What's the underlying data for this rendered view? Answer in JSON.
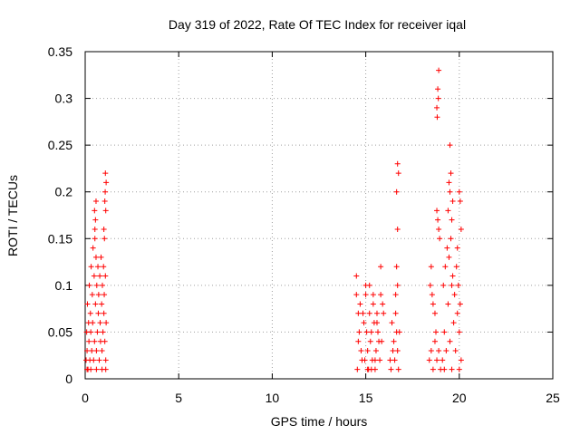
{
  "chart_data": {
    "type": "scatter",
    "title": "Day 319 of 2022, Rate Of TEC Index for receiver iqal",
    "xlabel": "GPS time / hours",
    "ylabel": "ROTI / TECUs",
    "xlim": [
      0,
      25
    ],
    "ylim": [
      0,
      0.35
    ],
    "x_ticks": [
      0,
      5,
      10,
      15,
      20,
      25
    ],
    "y_ticks": [
      0,
      0.05,
      0.1,
      0.15,
      0.2,
      0.25,
      0.3,
      0.35
    ],
    "x_tick_labels": [
      "0",
      "5",
      "10",
      "15",
      "20",
      "25"
    ],
    "y_tick_labels": [
      "0",
      "0.05",
      "0.1",
      "0.15",
      "0.2",
      "0.25",
      "0.3",
      "0.35"
    ],
    "grid": true,
    "legend": "none",
    "marker": "plus",
    "color": "#ff0000",
    "series": [
      {
        "points": [
          [
            0.05,
            0.02
          ],
          [
            0.08,
            0.05
          ],
          [
            0.1,
            0.03
          ],
          [
            0.12,
            0.08
          ],
          [
            0.15,
            0.01
          ],
          [
            0.18,
            0.06
          ],
          [
            0.2,
            0.04
          ],
          [
            0.22,
            0.1
          ],
          [
            0.25,
            0.02
          ],
          [
            0.28,
            0.07
          ],
          [
            0.3,
            0.05
          ],
          [
            0.32,
            0.12
          ],
          [
            0.35,
            0.03
          ],
          [
            0.38,
            0.09
          ],
          [
            0.4,
            0.06
          ],
          [
            0.42,
            0.14
          ],
          [
            0.45,
            0.02
          ],
          [
            0.48,
            0.11
          ],
          [
            0.5,
            0.04
          ],
          [
            0.52,
            0.15
          ],
          [
            0.55,
            0.08
          ],
          [
            0.58,
            0.13
          ],
          [
            0.6,
            0.03
          ],
          [
            0.62,
            0.1
          ],
          [
            0.65,
            0.05
          ],
          [
            0.68,
            0.12
          ],
          [
            0.7,
            0.07
          ],
          [
            0.72,
            0.09
          ],
          [
            0.75,
            0.02
          ],
          [
            0.78,
            0.11
          ],
          [
            0.8,
            0.06
          ],
          [
            0.82,
            0.04
          ],
          [
            0.85,
            0.13
          ],
          [
            0.88,
            0.08
          ],
          [
            0.9,
            0.03
          ],
          [
            0.92,
            0.1
          ],
          [
            0.95,
            0.05
          ],
          [
            0.98,
            0.12
          ],
          [
            1.0,
            0.07
          ],
          [
            1.02,
            0.09
          ],
          [
            1.05,
            0.04
          ],
          [
            1.08,
            0.11
          ],
          [
            1.1,
            0.02
          ],
          [
            1.12,
            0.06
          ],
          [
            0.5,
            0.18
          ],
          [
            0.55,
            0.17
          ],
          [
            0.58,
            0.19
          ],
          [
            0.52,
            0.16
          ],
          [
            1.05,
            0.19
          ],
          [
            1.08,
            0.22
          ],
          [
            1.1,
            0.18
          ],
          [
            1.07,
            0.2
          ],
          [
            1.12,
            0.21
          ],
          [
            1.0,
            0.16
          ],
          [
            1.03,
            0.15
          ],
          [
            0.1,
            0.01
          ],
          [
            0.3,
            0.01
          ],
          [
            0.6,
            0.01
          ],
          [
            0.9,
            0.01
          ],
          [
            1.1,
            0.01
          ],
          [
            14.5,
            0.11
          ],
          [
            14.6,
            0.04
          ],
          [
            14.7,
            0.08
          ],
          [
            14.8,
            0.02
          ],
          [
            14.9,
            0.06
          ],
          [
            15.0,
            0.1
          ],
          [
            15.1,
            0.03
          ],
          [
            15.2,
            0.07
          ],
          [
            15.3,
            0.05
          ],
          [
            15.4,
            0.09
          ],
          [
            15.5,
            0.02
          ],
          [
            15.6,
            0.06
          ],
          [
            15.7,
            0.04
          ],
          [
            15.8,
            0.12
          ],
          [
            15.9,
            0.08
          ],
          [
            14.55,
            0.01
          ],
          [
            14.65,
            0.05
          ],
          [
            14.75,
            0.03
          ],
          [
            14.85,
            0.07
          ],
          [
            14.95,
            0.02
          ],
          [
            15.05,
            0.05
          ],
          [
            15.15,
            0.01
          ],
          [
            15.25,
            0.04
          ],
          [
            15.35,
            0.02
          ],
          [
            15.45,
            0.06
          ],
          [
            15.55,
            0.03
          ],
          [
            15.65,
            0.05
          ],
          [
            15.75,
            0.02
          ],
          [
            15.85,
            0.04
          ],
          [
            15.95,
            0.07
          ],
          [
            15.0,
            0.09
          ],
          [
            15.2,
            0.1
          ],
          [
            15.4,
            0.08
          ],
          [
            15.6,
            0.07
          ],
          [
            15.8,
            0.09
          ],
          [
            14.5,
            0.09
          ],
          [
            14.6,
            0.07
          ],
          [
            15.5,
            0.01
          ],
          [
            15.3,
            0.01
          ],
          [
            15.1,
            0.01
          ],
          [
            16.3,
            0.02
          ],
          [
            16.4,
            0.06
          ],
          [
            16.5,
            0.04
          ],
          [
            16.6,
            0.07
          ],
          [
            16.7,
            0.03
          ],
          [
            16.8,
            0.05
          ],
          [
            16.35,
            0.01
          ],
          [
            16.45,
            0.03
          ],
          [
            16.55,
            0.02
          ],
          [
            16.65,
            0.05
          ],
          [
            16.75,
            0.01
          ],
          [
            16.6,
            0.09
          ],
          [
            16.65,
            0.12
          ],
          [
            16.7,
            0.1
          ],
          [
            16.7,
            0.16
          ],
          [
            16.65,
            0.2
          ],
          [
            16.7,
            0.23
          ],
          [
            16.75,
            0.22
          ],
          [
            18.4,
            0.02
          ],
          [
            18.5,
            0.03
          ],
          [
            18.6,
            0.01
          ],
          [
            18.7,
            0.04
          ],
          [
            18.8,
            0.02
          ],
          [
            18.9,
            0.03
          ],
          [
            19.0,
            0.01
          ],
          [
            18.45,
            0.1
          ],
          [
            18.5,
            0.12
          ],
          [
            18.55,
            0.09
          ],
          [
            18.6,
            0.08
          ],
          [
            18.7,
            0.07
          ],
          [
            18.75,
            0.05
          ],
          [
            18.8,
            0.29
          ],
          [
            18.85,
            0.31
          ],
          [
            18.9,
            0.33
          ],
          [
            18.82,
            0.28
          ],
          [
            18.88,
            0.3
          ],
          [
            18.8,
            0.18
          ],
          [
            18.85,
            0.17
          ],
          [
            18.9,
            0.16
          ],
          [
            18.95,
            0.15
          ],
          [
            19.1,
            0.02
          ],
          [
            19.2,
            0.05
          ],
          [
            19.3,
            0.03
          ],
          [
            19.4,
            0.08
          ],
          [
            19.5,
            0.04
          ],
          [
            19.6,
            0.1
          ],
          [
            19.7,
            0.06
          ],
          [
            19.8,
            0.03
          ],
          [
            19.9,
            0.07
          ],
          [
            20.0,
            0.05
          ],
          [
            20.1,
            0.02
          ],
          [
            19.15,
            0.1
          ],
          [
            19.25,
            0.12
          ],
          [
            19.35,
            0.14
          ],
          [
            19.45,
            0.13
          ],
          [
            19.55,
            0.15
          ],
          [
            19.65,
            0.11
          ],
          [
            19.75,
            0.09
          ],
          [
            19.85,
            0.12
          ],
          [
            19.95,
            0.1
          ],
          [
            20.05,
            0.08
          ],
          [
            19.4,
            0.18
          ],
          [
            19.5,
            0.2
          ],
          [
            19.55,
            0.22
          ],
          [
            19.45,
            0.21
          ],
          [
            19.5,
            0.25
          ],
          [
            19.6,
            0.17
          ],
          [
            19.65,
            0.19
          ],
          [
            20.0,
            0.2
          ],
          [
            20.05,
            0.19
          ],
          [
            20.1,
            0.16
          ],
          [
            19.9,
            0.14
          ],
          [
            19.2,
            0.01
          ],
          [
            19.6,
            0.01
          ],
          [
            20.0,
            0.01
          ]
        ]
      }
    ]
  }
}
